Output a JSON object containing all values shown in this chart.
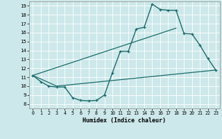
{
  "xlabel": "Humidex (Indice chaleur)",
  "xlim": [
    -0.5,
    23.5
  ],
  "ylim": [
    7.5,
    19.5
  ],
  "yticks": [
    8,
    9,
    10,
    11,
    12,
    13,
    14,
    15,
    16,
    17,
    18,
    19
  ],
  "xticks": [
    0,
    1,
    2,
    3,
    4,
    5,
    6,
    7,
    8,
    9,
    10,
    11,
    12,
    13,
    14,
    15,
    16,
    17,
    18,
    19,
    20,
    21,
    22,
    23
  ],
  "bg_color": "#cde8ea",
  "line_color": "#1a6b6b",
  "line1_x": [
    0,
    1,
    2,
    3,
    4,
    5,
    6,
    7,
    8,
    9,
    10,
    11,
    12,
    13,
    14,
    15,
    16,
    17,
    18,
    19,
    20,
    21,
    22,
    23
  ],
  "line1_y": [
    11.2,
    10.5,
    10.0,
    9.9,
    9.9,
    8.7,
    8.4,
    8.35,
    8.4,
    9.0,
    11.5,
    13.9,
    13.9,
    16.4,
    16.6,
    19.2,
    18.6,
    18.5,
    18.5,
    15.9,
    15.85,
    14.6,
    13.1,
    11.8
  ],
  "line2_x": [
    0,
    3,
    23
  ],
  "line2_y": [
    11.2,
    10.0,
    11.8
  ],
  "line3_x": [
    0,
    18
  ],
  "line3_y": [
    11.2,
    16.5
  ]
}
